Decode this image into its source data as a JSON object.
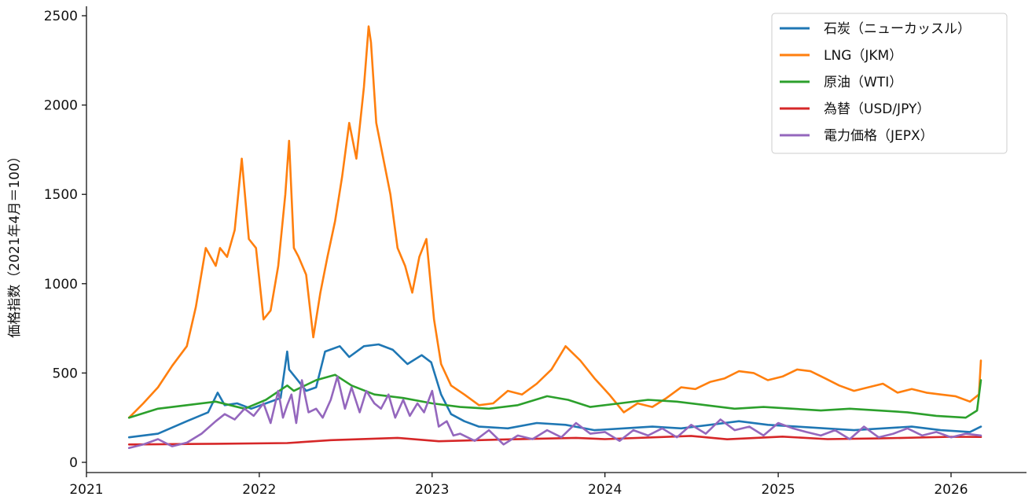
{
  "chart_data": {
    "type": "line",
    "title": "",
    "xlabel": "",
    "ylabel": "価格指数（2021年4月＝100）",
    "ylim": [
      0,
      2550
    ],
    "xlim": [
      "2021-01-01",
      "2026-06-01"
    ],
    "x_ticks": [
      "2021",
      "2022",
      "2023",
      "2024",
      "2025",
      "2026"
    ],
    "y_ticks": [
      "0",
      "500",
      "1000",
      "1500",
      "2000",
      "2500"
    ],
    "y_tick_values": [
      0,
      500,
      1000,
      1500,
      2000,
      2500
    ],
    "grid": false,
    "legend_position": "top-right",
    "series": [
      {
        "name": "石炭（ニューカッスル）",
        "color": "#1f77b4",
        "x": [
          "2021-04-01",
          "2021-06-01",
          "2021-08-01",
          "2021-09-15",
          "2021-10-05",
          "2021-10-20",
          "2021-11-15",
          "2021-12-15",
          "2022-01-15",
          "2022-02-15",
          "2022-03-01",
          "2022-03-05",
          "2022-03-20",
          "2022-04-10",
          "2022-05-01",
          "2022-05-20",
          "2022-06-20",
          "2022-07-10",
          "2022-08-10",
          "2022-09-10",
          "2022-10-10",
          "2022-11-10",
          "2022-12-10",
          "2022-12-30",
          "2023-01-20",
          "2023-02-10",
          "2023-03-10",
          "2023-04-10",
          "2023-06-10",
          "2023-08-10",
          "2023-10-10",
          "2023-12-10",
          "2024-02-10",
          "2024-04-10",
          "2024-06-10",
          "2024-08-10",
          "2024-10-10",
          "2024-12-10",
          "2025-02-10",
          "2025-04-10",
          "2025-06-10",
          "2025-08-10",
          "2025-10-10",
          "2025-12-10",
          "2026-02-10",
          "2026-03-05"
        ],
        "y": [
          140,
          160,
          230,
          280,
          390,
          320,
          330,
          300,
          330,
          360,
          620,
          520,
          470,
          400,
          420,
          620,
          650,
          590,
          650,
          660,
          630,
          550,
          600,
          560,
          380,
          270,
          230,
          200,
          190,
          220,
          210,
          180,
          190,
          200,
          190,
          210,
          230,
          210,
          200,
          190,
          180,
          190,
          200,
          180,
          170,
          200
        ]
      },
      {
        "name": "LNG（JKM）",
        "color": "#ff7f0e",
        "x": [
          "2021-04-01",
          "2021-05-01",
          "2021-06-01",
          "2021-07-01",
          "2021-08-01",
          "2021-08-20",
          "2021-09-10",
          "2021-10-01",
          "2021-10-10",
          "2021-10-25",
          "2021-11-10",
          "2021-11-25",
          "2021-12-10",
          "2021-12-25",
          "2022-01-10",
          "2022-01-25",
          "2022-02-10",
          "2022-02-25",
          "2022-03-05",
          "2022-03-15",
          "2022-03-25",
          "2022-04-10",
          "2022-04-25",
          "2022-05-10",
          "2022-05-25",
          "2022-06-10",
          "2022-06-25",
          "2022-07-10",
          "2022-07-25",
          "2022-08-10",
          "2022-08-20",
          "2022-08-25",
          "2022-09-05",
          "2022-09-20",
          "2022-10-05",
          "2022-10-20",
          "2022-11-05",
          "2022-11-20",
          "2022-12-05",
          "2022-12-20",
          "2023-01-05",
          "2023-01-20",
          "2023-02-10",
          "2023-03-10",
          "2023-04-10",
          "2023-05-10",
          "2023-06-10",
          "2023-07-10",
          "2023-08-10",
          "2023-09-10",
          "2023-10-10",
          "2023-11-10",
          "2023-12-10",
          "2024-01-10",
          "2024-02-10",
          "2024-03-10",
          "2024-04-10",
          "2024-05-10",
          "2024-06-10",
          "2024-07-10",
          "2024-08-10",
          "2024-09-10",
          "2024-10-10",
          "2024-11-10",
          "2024-12-10",
          "2025-01-10",
          "2025-02-10",
          "2025-03-10",
          "2025-04-10",
          "2025-05-10",
          "2025-06-10",
          "2025-07-10",
          "2025-08-10",
          "2025-09-10",
          "2025-10-10",
          "2025-11-10",
          "2025-12-10",
          "2026-01-10",
          "2026-02-10",
          "2026-03-01",
          "2026-03-05"
        ],
        "y": [
          250,
          330,
          420,
          540,
          650,
          870,
          1200,
          1100,
          1200,
          1150,
          1300,
          1700,
          1250,
          1200,
          800,
          850,
          1100,
          1500,
          1800,
          1200,
          1150,
          1050,
          700,
          950,
          1150,
          1350,
          1600,
          1900,
          1700,
          2100,
          2440,
          2350,
          1900,
          1700,
          1500,
          1200,
          1100,
          950,
          1150,
          1250,
          800,
          550,
          430,
          380,
          320,
          330,
          400,
          380,
          440,
          520,
          650,
          570,
          470,
          380,
          280,
          330,
          310,
          360,
          420,
          410,
          450,
          470,
          510,
          500,
          460,
          480,
          520,
          510,
          470,
          430,
          400,
          420,
          440,
          390,
          410,
          390,
          380,
          370,
          340,
          380,
          570
        ]
      },
      {
        "name": "原油（WTI）",
        "color": "#2ca02c",
        "x": [
          "2021-04-01",
          "2021-06-01",
          "2021-08-01",
          "2021-10-01",
          "2021-12-01",
          "2022-01-15",
          "2022-03-01",
          "2022-03-15",
          "2022-05-01",
          "2022-06-10",
          "2022-07-15",
          "2022-09-01",
          "2022-11-01",
          "2023-01-01",
          "2023-03-01",
          "2023-05-01",
          "2023-07-01",
          "2023-09-01",
          "2023-10-15",
          "2023-12-01",
          "2024-02-01",
          "2024-04-01",
          "2024-06-01",
          "2024-08-01",
          "2024-10-01",
          "2024-12-01",
          "2025-02-01",
          "2025-04-01",
          "2025-06-01",
          "2025-08-01",
          "2025-10-01",
          "2025-12-01",
          "2026-02-01",
          "2026-02-25",
          "2026-03-05"
        ],
        "y": [
          250,
          300,
          320,
          340,
          300,
          350,
          430,
          400,
          460,
          490,
          430,
          380,
          360,
          330,
          310,
          300,
          320,
          370,
          350,
          310,
          330,
          350,
          340,
          320,
          300,
          310,
          300,
          290,
          300,
          290,
          280,
          260,
          250,
          290,
          460
        ]
      },
      {
        "name": "為替（USD/JPY）",
        "color": "#d62728",
        "x": [
          "2021-04-01",
          "2021-10-01",
          "2022-03-01",
          "2022-06-01",
          "2022-10-20",
          "2023-01-15",
          "2023-06-01",
          "2023-11-01",
          "2024-01-01",
          "2024-07-01",
          "2024-09-15",
          "2025-01-10",
          "2025-04-15",
          "2025-08-01",
          "2026-01-01",
          "2026-03-05"
        ],
        "y": [
          100,
          104,
          108,
          124,
          137,
          118,
          128,
          137,
          130,
          148,
          129,
          144,
          130,
          134,
          143,
          142
        ]
      },
      {
        "name": "電力価格（JEPX）",
        "color": "#9467bd",
        "x": [
          "2021-04-01",
          "2021-05-01",
          "2021-06-01",
          "2021-07-01",
          "2021-08-01",
          "2021-09-01",
          "2021-10-01",
          "2021-10-20",
          "2021-11-10",
          "2021-12-01",
          "2021-12-20",
          "2022-01-10",
          "2022-01-25",
          "2022-02-10",
          "2022-02-20",
          "2022-03-01",
          "2022-03-10",
          "2022-03-20",
          "2022-04-01",
          "2022-04-15",
          "2022-05-01",
          "2022-05-15",
          "2022-06-01",
          "2022-06-15",
          "2022-07-01",
          "2022-07-15",
          "2022-08-01",
          "2022-08-15",
          "2022-09-01",
          "2022-09-15",
          "2022-10-01",
          "2022-10-15",
          "2022-11-01",
          "2022-11-15",
          "2022-12-01",
          "2022-12-15",
          "2023-01-01",
          "2023-01-15",
          "2023-02-01",
          "2023-02-15",
          "2023-03-01",
          "2023-04-01",
          "2023-05-01",
          "2023-06-01",
          "2023-07-01",
          "2023-08-01",
          "2023-09-01",
          "2023-10-01",
          "2023-11-01",
          "2023-12-01",
          "2024-01-01",
          "2024-02-01",
          "2024-03-01",
          "2024-04-01",
          "2024-05-01",
          "2024-06-01",
          "2024-07-01",
          "2024-08-01",
          "2024-09-01",
          "2024-10-01",
          "2024-11-01",
          "2024-12-01",
          "2025-01-01",
          "2025-02-01",
          "2025-03-01",
          "2025-04-01",
          "2025-05-01",
          "2025-06-01",
          "2025-07-01",
          "2025-08-01",
          "2025-09-01",
          "2025-10-01",
          "2025-11-01",
          "2025-12-01",
          "2026-01-01",
          "2026-02-01",
          "2026-03-05"
        ],
        "y": [
          80,
          100,
          130,
          90,
          110,
          160,
          230,
          270,
          240,
          300,
          260,
          330,
          220,
          400,
          250,
          320,
          380,
          220,
          460,
          280,
          300,
          250,
          350,
          480,
          300,
          420,
          280,
          400,
          330,
          300,
          380,
          250,
          350,
          260,
          330,
          280,
          400,
          200,
          230,
          150,
          160,
          120,
          180,
          100,
          150,
          130,
          180,
          140,
          220,
          160,
          170,
          120,
          180,
          150,
          190,
          140,
          210,
          160,
          240,
          180,
          200,
          150,
          220,
          190,
          170,
          150,
          180,
          130,
          200,
          140,
          160,
          190,
          150,
          170,
          140,
          160,
          150
        ]
      }
    ]
  }
}
